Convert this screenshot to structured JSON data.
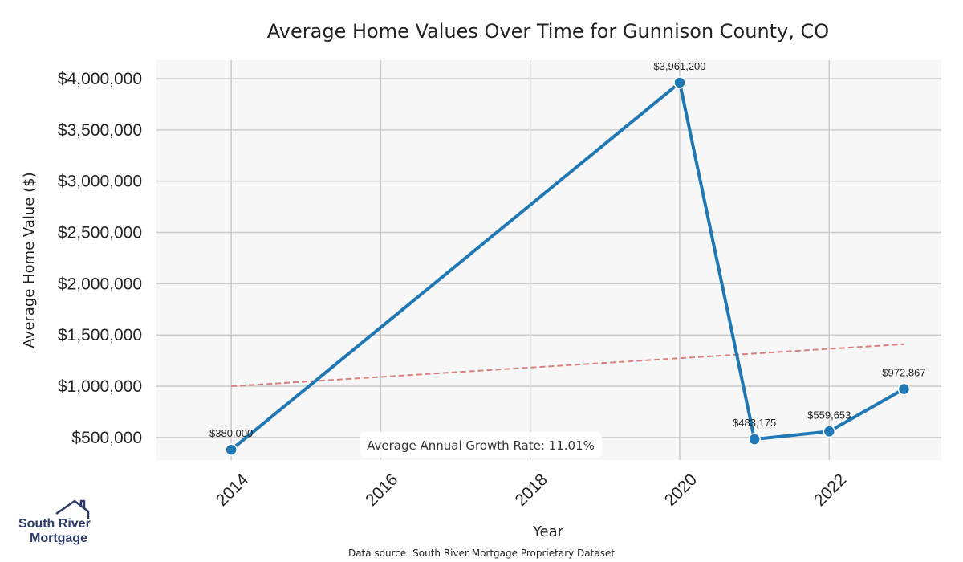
{
  "chart_data": {
    "type": "line",
    "title": "Average Home Values Over Time for Gunnison County, CO",
    "xlabel": "Year",
    "ylabel": "Average Home Value ($)",
    "xlim": [
      2013.0,
      2023.5
    ],
    "ylim": [
      280000,
      4180000
    ],
    "x_ticks": [
      2014,
      2016,
      2018,
      2020,
      2022
    ],
    "x_tick_labels": [
      "2014",
      "2016",
      "2018",
      "2020",
      "2022"
    ],
    "y_ticks": [
      500000,
      1000000,
      1500000,
      2000000,
      2500000,
      3000000,
      3500000,
      4000000
    ],
    "y_tick_labels": [
      "$500,000",
      "$1,000,000",
      "$1,500,000",
      "$2,000,000",
      "$2,500,000",
      "$3,000,000",
      "$3,500,000",
      "$4,000,000"
    ],
    "grid": true,
    "series": [
      {
        "color": "#1f77b4",
        "points": [
          {
            "x": 2014,
            "y": 380000,
            "label": "$380,000"
          },
          {
            "x": 2020,
            "y": 3961200,
            "label": "$3,961,200"
          },
          {
            "x": 2021,
            "y": 483175,
            "label": "$483,175"
          },
          {
            "x": 2022,
            "y": 559653,
            "label": "$559,653"
          },
          {
            "x": 2023,
            "y": 972867,
            "label": "$972,867"
          }
        ]
      }
    ],
    "trend_line": {
      "color": "#d98080",
      "style": "dashed",
      "points": [
        {
          "x": 2014,
          "y": 1000000
        },
        {
          "x": 2023,
          "y": 1410000
        }
      ]
    },
    "annotation": "Average Annual Growth Rate: 11.01%",
    "source": "Data source: South River Mortgage Proprietary Dataset"
  },
  "logo": {
    "line1": "South River",
    "line2": "Mortgage",
    "color": "#2b3a67"
  }
}
